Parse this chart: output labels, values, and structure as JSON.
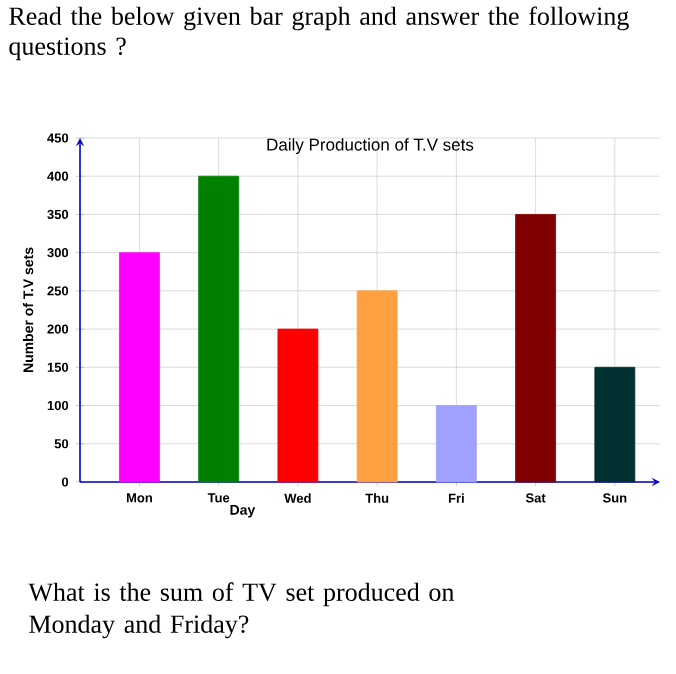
{
  "chart_data": {
    "type": "bar",
    "title": "Daily Production of T.V sets",
    "xlabel": "Day",
    "ylabel": "Number of T.V sets",
    "categories": [
      "Mon",
      "Tue",
      "Wed",
      "Thu",
      "Fri",
      "Sat",
      "Sun"
    ],
    "values": [
      300,
      400,
      200,
      250,
      100,
      350,
      150
    ],
    "colors": [
      "#ff00ff",
      "#008000",
      "#ff0000",
      "#ffa040",
      "#a0a0ff",
      "#800000",
      "#003030"
    ],
    "ylim": [
      0,
      450
    ],
    "yticks": [
      0,
      50,
      100,
      150,
      200,
      250,
      300,
      350,
      400,
      450
    ],
    "grid": true,
    "annotations": [
      "Read the below given bar graph and answer the following questions ?",
      "What is the sum of TV set produced on Monday and Friday?"
    ]
  }
}
